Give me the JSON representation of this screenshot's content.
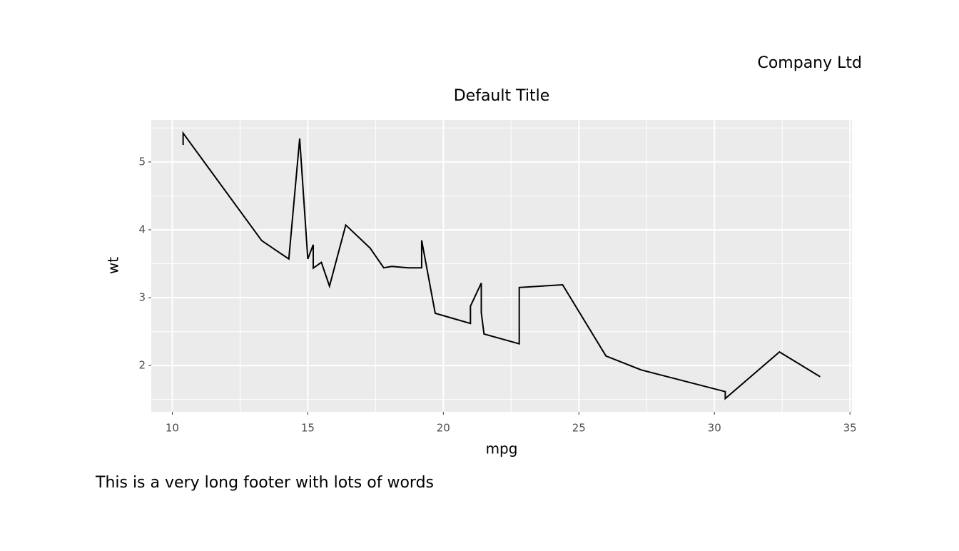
{
  "chart_data": {
    "type": "line",
    "title": "Default Title",
    "company": "Company Ltd",
    "footer": "This is a very long footer with lots of words",
    "x_label": "mpg",
    "y_label": "wt",
    "x": [
      10.4,
      10.4,
      13.3,
      14.3,
      14.7,
      15.0,
      15.2,
      15.2,
      15.5,
      15.8,
      16.4,
      17.3,
      17.8,
      18.1,
      18.7,
      19.2,
      19.2,
      19.7,
      21.0,
      21.0,
      21.4,
      21.4,
      21.5,
      22.8,
      22.8,
      24.4,
      26.0,
      27.3,
      30.4,
      30.4,
      32.4,
      33.9
    ],
    "values": [
      5.25,
      5.424,
      3.84,
      3.57,
      5.345,
      3.57,
      3.78,
      3.435,
      3.52,
      3.17,
      4.07,
      3.73,
      3.44,
      3.46,
      3.44,
      3.44,
      3.845,
      2.77,
      2.62,
      2.875,
      3.215,
      2.78,
      2.465,
      2.32,
      3.15,
      3.19,
      2.14,
      1.935,
      1.615,
      1.513,
      2.2,
      1.835
    ],
    "color": "#000000",
    "xlim": [
      9.225,
      35.075
    ],
    "ylim": [
      1.3175,
      5.6196
    ],
    "xticks": [
      10,
      15,
      20,
      25,
      30,
      35
    ],
    "yticks": [
      2,
      3,
      4,
      5
    ],
    "grid": true,
    "panel_color": "#ebebeb"
  }
}
